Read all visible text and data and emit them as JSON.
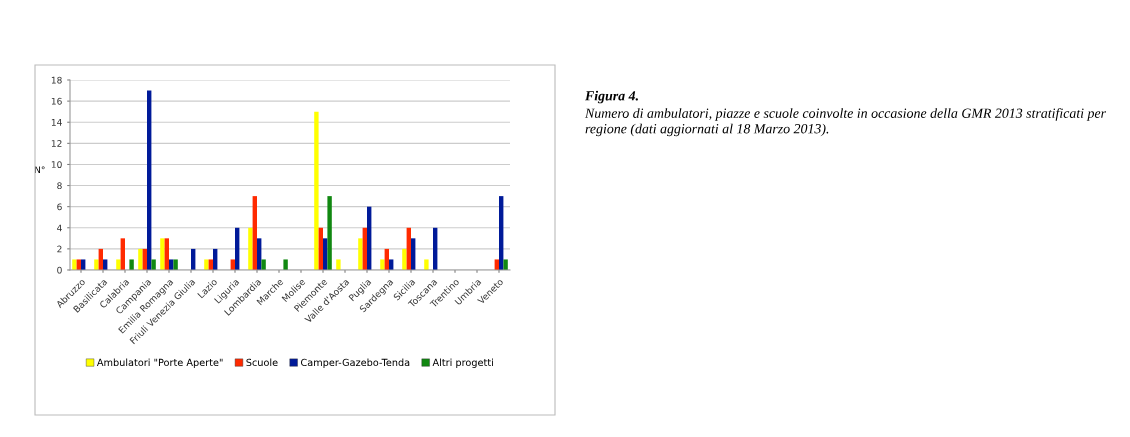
{
  "chart_data": {
    "type": "bar",
    "title": "Figura 4.",
    "annotations": [
      "Numero di ambulatori, piazze e scuole coinvolte in occasione della GMR 2013 stratificati per regione (dati aggiornati al 18 Marzo 2013)."
    ],
    "ylabel": "N°",
    "categories": [
      "Abruzzo",
      "Basilicata",
      "Calabria",
      "Campania",
      "Emilia Romagna",
      "Friuli Venezia Giulia",
      "Lazio",
      "Liguria",
      "Lombardia",
      "Marche",
      "Molise",
      "Piemonte",
      "Valle d'Aosta",
      "Puglia",
      "Sardegna",
      "Sicilia",
      "Toscana",
      "Trentino",
      "Umbria",
      "Veneto"
    ],
    "series": [
      {
        "name": "Ambulatori \"Porte Aperte\"",
        "color": "#ffff00",
        "values": [
          1,
          1,
          1,
          2,
          3,
          null,
          1,
          null,
          4,
          null,
          null,
          15,
          1,
          3,
          1,
          2,
          1,
          null,
          null,
          null
        ]
      },
      {
        "name": "Scuole",
        "color": "#ff2a00",
        "values": [
          1,
          2,
          3,
          2,
          3,
          null,
          1,
          1,
          7,
          null,
          null,
          4,
          null,
          4,
          2,
          4,
          null,
          null,
          null,
          1
        ]
      },
      {
        "name": "Camper-Gazebo-Tenda",
        "color": "#001a99",
        "values": [
          1,
          1,
          null,
          17,
          1,
          2,
          2,
          4,
          3,
          null,
          null,
          3,
          null,
          6,
          1,
          3,
          4,
          null,
          null,
          7
        ]
      },
      {
        "name": "Altri progetti",
        "color": "#118811",
        "values": [
          null,
          null,
          1,
          1,
          1,
          null,
          null,
          null,
          1,
          1,
          null,
          7,
          null,
          null,
          null,
          null,
          null,
          null,
          null,
          1
        ]
      }
    ],
    "ylim": [
      0,
      18
    ],
    "yticks": [
      0,
      2,
      4,
      6,
      8,
      10,
      12,
      14,
      16,
      18
    ],
    "grid": "y",
    "legend": "bottom"
  }
}
